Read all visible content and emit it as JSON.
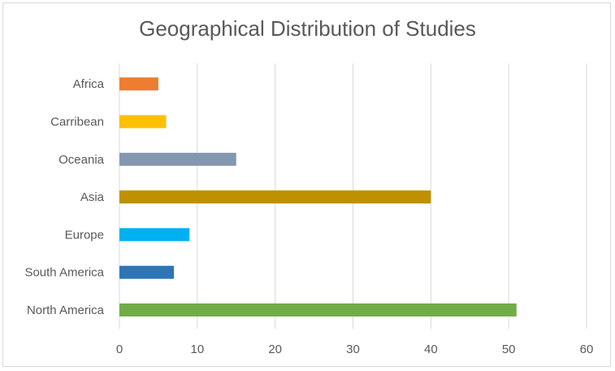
{
  "chart_data": {
    "type": "bar",
    "orientation": "horizontal",
    "title": "Geographical Distribution of Studies",
    "categories": [
      "North America",
      "South America",
      "Europe",
      "Asia",
      "Oceania",
      "Carribean",
      "Africa"
    ],
    "values": [
      51,
      7,
      9,
      40,
      15,
      6,
      5
    ],
    "colors": [
      "#70ad47",
      "#2e75b6",
      "#00b0f0",
      "#bf9000",
      "#8497b0",
      "#ffc000",
      "#ed7d31"
    ],
    "xlim": [
      0,
      60
    ],
    "xticks": [
      "0",
      "10",
      "20",
      "30",
      "40",
      "50",
      "60"
    ],
    "grid": true,
    "gridline_color": "#d9d9d9",
    "legend": "none"
  }
}
